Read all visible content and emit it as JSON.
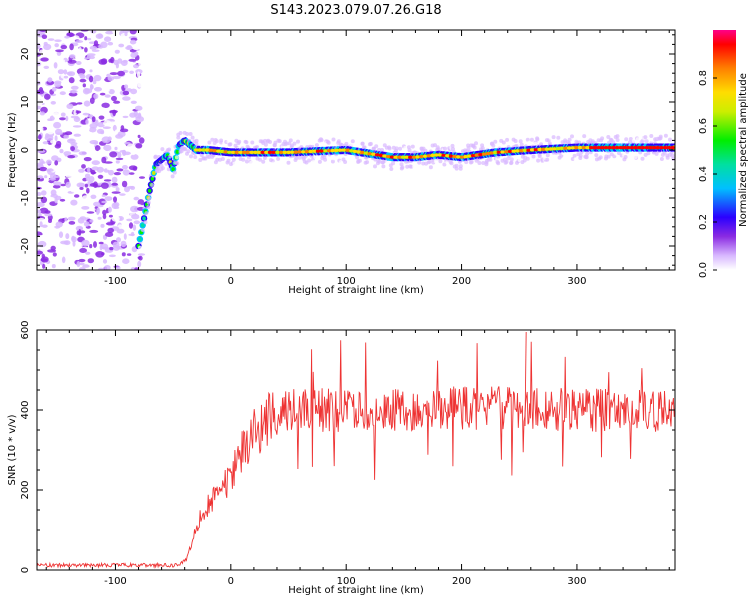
{
  "title": "S143.2023.079.07.26.G18",
  "chart_data": [
    {
      "type": "heatmap",
      "xlabel": "Height of straight line (km)",
      "ylabel": "Frequency (Hz)",
      "xlim": [
        -168,
        385
      ],
      "ylim": [
        -25,
        25
      ],
      "xticks": [
        -100,
        0,
        100,
        200,
        300
      ],
      "yticks": [
        -20,
        -10,
        0,
        10,
        20
      ],
      "colorbar": {
        "label": "Normalized spectral amplitude",
        "range": [
          0,
          1
        ],
        "ticks": [
          0.0,
          0.2,
          0.4,
          0.6,
          0.8
        ],
        "colormap": "rainbow"
      },
      "ridge": {
        "x": [
          -80,
          -75,
          -70,
          -65,
          -60,
          -55,
          -50,
          -45,
          -40,
          -35,
          -30,
          -20,
          0,
          50,
          100,
          140,
          160,
          180,
          200,
          230,
          260,
          300,
          340,
          385
        ],
        "y": [
          -20,
          -14,
          -8,
          -3,
          -2,
          -1,
          -4,
          1,
          2,
          1,
          0,
          0,
          -0.5,
          -0.5,
          0,
          -1.5,
          -1.5,
          -1,
          -1.5,
          -0.5,
          0,
          0.5,
          0.5,
          0.5
        ]
      },
      "noise_region": [
        -168,
        -80
      ],
      "grid": false
    },
    {
      "type": "line",
      "xlabel": "Height of straight line (km)",
      "ylabel": "SNR (10 * v/v)",
      "xlim": [
        -168,
        385
      ],
      "ylim": [
        0,
        600
      ],
      "xticks": [
        -100,
        0,
        100,
        200,
        300
      ],
      "yticks": [
        0,
        200,
        400,
        600
      ],
      "series": [
        {
          "color": "#ee3333",
          "profile_x": [
            -168,
            -45,
            -38,
            -30,
            -20,
            -10,
            0,
            10,
            20,
            30,
            40,
            50,
            60,
            80,
            100,
            150,
            200,
            250,
            300,
            350,
            385
          ],
          "profile_y": [
            12,
            12,
            30,
            110,
            160,
            200,
            230,
            300,
            340,
            370,
            390,
            395,
            400,
            400,
            400,
            400,
            405,
            405,
            400,
            400,
            400
          ],
          "spike_max": 595
        }
      ],
      "grid": false
    }
  ],
  "colors": {
    "line": "#ee3333",
    "axis": "#000000"
  }
}
